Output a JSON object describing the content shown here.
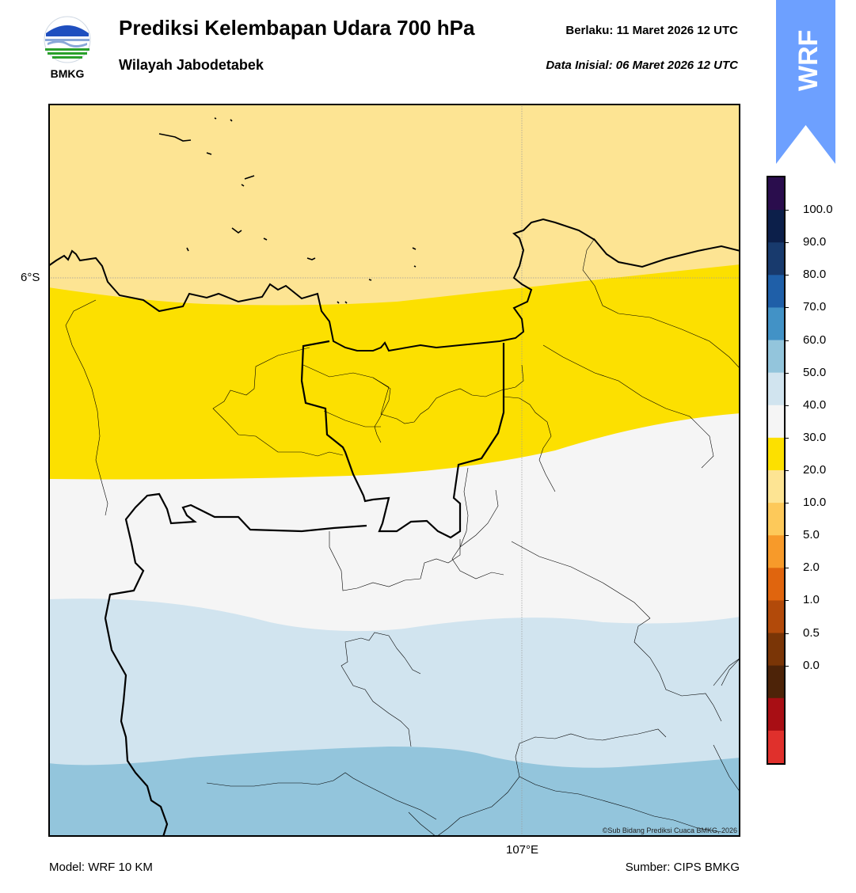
{
  "header": {
    "title": "Prediksi Kelembapan Udara 700 hPa",
    "subtitle": "Wilayah Jabodetabek",
    "valid_label": "Berlaku:  11 Maret 2026 12 UTC",
    "init_label": "Data Inisial:  06 Maret 2026 12 UTC"
  },
  "logo": {
    "text": "BMKG",
    "icon": "bmkg-logo-icon"
  },
  "badge": {
    "text": "WRF",
    "color": "#6da0ff",
    "icon": "wrf-badge-icon"
  },
  "map": {
    "lat_tick": "6°S",
    "lon_tick": "107°E",
    "credit": "©Sub Bidang Prediksi Cuaca BMKG, 2026",
    "band_colors": {
      "very_light_yellow": "#fde493",
      "yellow": "#fce000",
      "white": "#f5f5f5",
      "light_blue": "#d1e4ef",
      "mid_blue": "#93c5dc"
    }
  },
  "colorbar": {
    "labels": [
      "100.0",
      "90.0",
      "80.0",
      "70.0",
      "60.0",
      "50.0",
      "40.0",
      "30.0",
      "20.0",
      "10.0",
      "5.0",
      "2.0",
      "1.0",
      "0.5",
      "0.0"
    ],
    "colors_top_to_bottom": [
      "#2a0d4d",
      "#0c1f4a",
      "#183a6d",
      "#1f5fa8",
      "#4292c6",
      "#93c5dc",
      "#d1e4ef",
      "#f5f5f5",
      "#fce000",
      "#fde493",
      "#fdc95a",
      "#f79a2a",
      "#e0650e",
      "#b24a0a",
      "#7a3506",
      "#4d2308",
      "#a80e14",
      "#e0302c"
    ]
  },
  "footer": {
    "model": "Model: WRF 10 KM",
    "source": "Sumber: CIPS BMKG"
  }
}
